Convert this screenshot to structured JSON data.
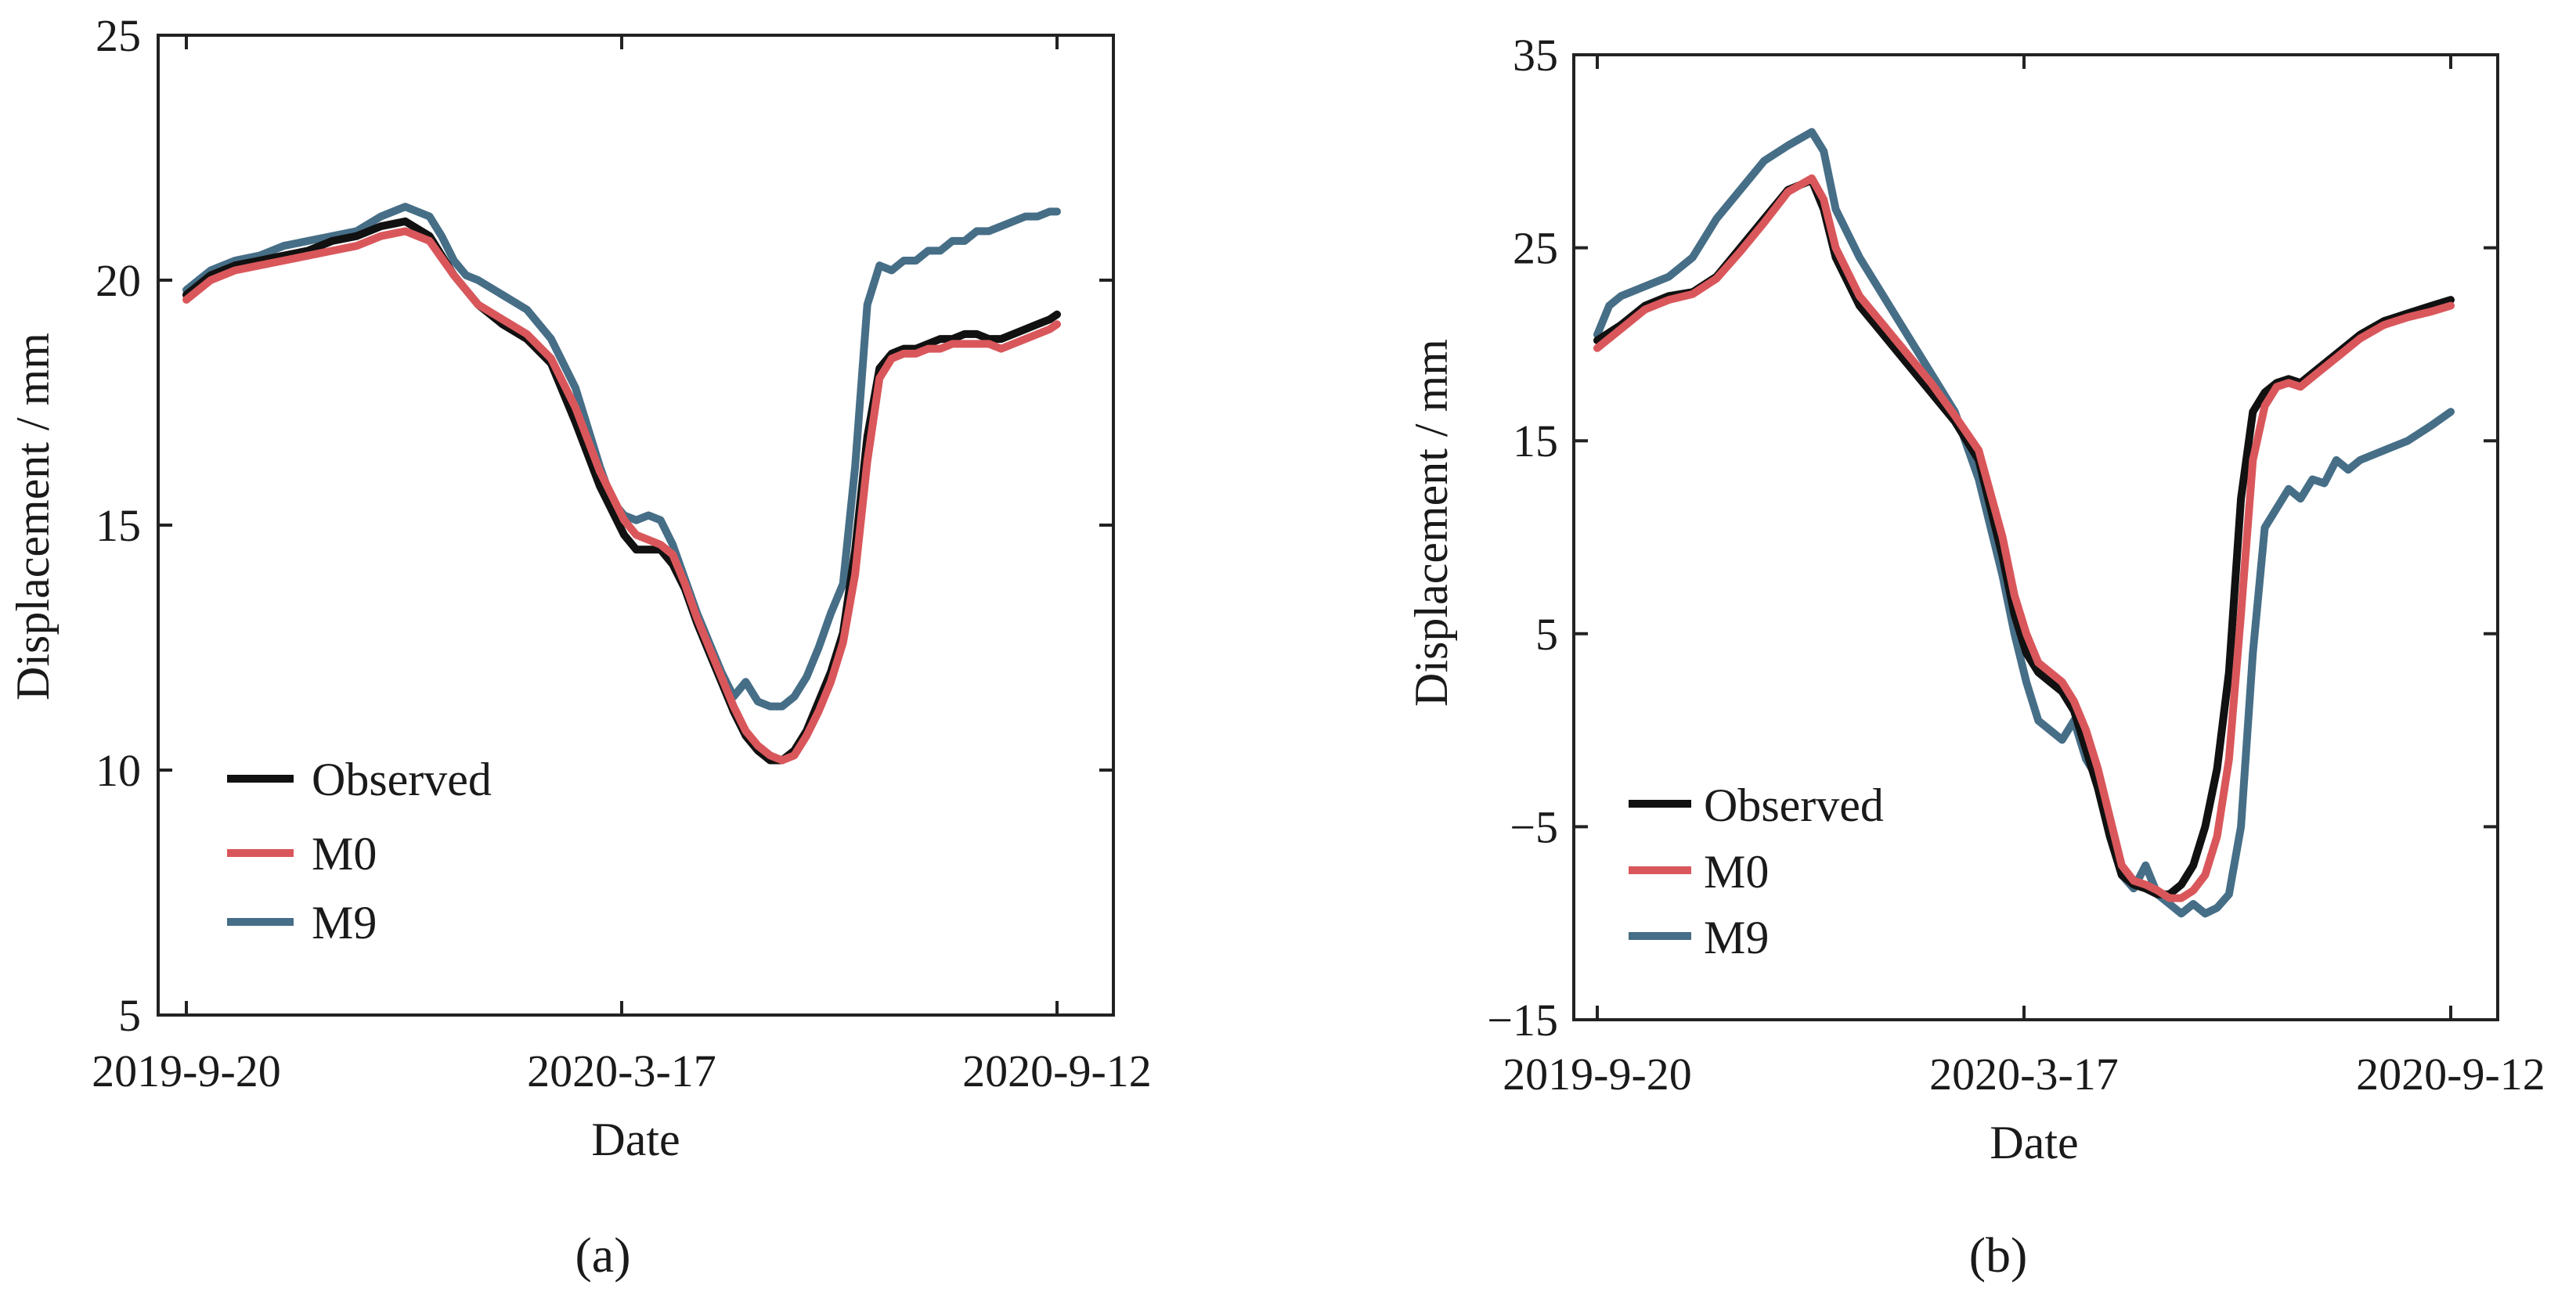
{
  "figure": {
    "caption_labels": [
      "(a)",
      "(b)"
    ]
  },
  "chart_data": [
    {
      "type": "line",
      "panel_label": "(a)",
      "xlabel": "Date",
      "ylabel": "Displacement / mm",
      "ylim": [
        5,
        25
      ],
      "yticks": [
        5,
        10,
        15,
        20,
        25
      ],
      "xlim": [
        0,
        358
      ],
      "xtick_values": [
        0,
        179,
        358
      ],
      "xtick_labels": [
        "2019-9-20",
        "2020-3-17",
        "2020-9-12"
      ],
      "legend_position": "lower-left",
      "series": [
        {
          "name": "Observed",
          "color": "#111111",
          "x": [
            0,
            10,
            20,
            30,
            40,
            50,
            60,
            70,
            80,
            90,
            100,
            110,
            115,
            120,
            130,
            140,
            150,
            160,
            170,
            180,
            185,
            190,
            195,
            200,
            205,
            210,
            215,
            220,
            225,
            230,
            235,
            240,
            245,
            250,
            255,
            260,
            265,
            270,
            275,
            280,
            285,
            290,
            295,
            300,
            305,
            310,
            315,
            320,
            325,
            330,
            335,
            340,
            345,
            350,
            355,
            358
          ],
          "values": [
            19.7,
            20.1,
            20.3,
            20.4,
            20.5,
            20.6,
            20.8,
            20.9,
            21.1,
            21.2,
            20.9,
            20.1,
            19.8,
            19.5,
            19.1,
            18.8,
            18.3,
            17.1,
            15.8,
            14.8,
            14.5,
            14.5,
            14.5,
            14.2,
            13.7,
            13.0,
            12.4,
            11.8,
            11.2,
            10.7,
            10.4,
            10.2,
            10.2,
            10.4,
            10.8,
            11.4,
            12.0,
            12.8,
            14.5,
            16.8,
            18.2,
            18.5,
            18.6,
            18.6,
            18.7,
            18.8,
            18.8,
            18.9,
            18.9,
            18.8,
            18.8,
            18.9,
            19.0,
            19.1,
            19.2,
            19.3
          ]
        },
        {
          "name": "M0",
          "color": "#d9575b",
          "x": [
            0,
            10,
            20,
            30,
            40,
            50,
            60,
            70,
            80,
            90,
            100,
            110,
            115,
            120,
            130,
            140,
            150,
            160,
            170,
            180,
            185,
            190,
            195,
            200,
            205,
            210,
            215,
            220,
            225,
            230,
            235,
            240,
            245,
            250,
            255,
            260,
            265,
            270,
            275,
            280,
            285,
            290,
            295,
            300,
            305,
            310,
            315,
            320,
            325,
            330,
            335,
            340,
            345,
            350,
            355,
            358
          ],
          "values": [
            19.6,
            20.0,
            20.2,
            20.3,
            20.4,
            20.5,
            20.6,
            20.7,
            20.9,
            21.0,
            20.8,
            20.1,
            19.8,
            19.5,
            19.2,
            18.9,
            18.4,
            17.4,
            16.1,
            15.1,
            14.8,
            14.7,
            14.6,
            14.4,
            13.8,
            13.1,
            12.5,
            11.9,
            11.3,
            10.8,
            10.5,
            10.3,
            10.2,
            10.3,
            10.7,
            11.2,
            11.8,
            12.6,
            14.0,
            16.3,
            18.0,
            18.4,
            18.5,
            18.5,
            18.6,
            18.6,
            18.7,
            18.7,
            18.7,
            18.7,
            18.6,
            18.7,
            18.8,
            18.9,
            19.0,
            19.1
          ]
        },
        {
          "name": "M9",
          "color": "#466e87",
          "x": [
            0,
            10,
            20,
            30,
            40,
            50,
            60,
            70,
            80,
            90,
            100,
            105,
            110,
            115,
            120,
            130,
            140,
            150,
            160,
            170,
            175,
            180,
            185,
            190,
            195,
            200,
            205,
            210,
            215,
            220,
            225,
            230,
            235,
            240,
            245,
            250,
            255,
            260,
            265,
            270,
            275,
            280,
            285,
            290,
            295,
            300,
            305,
            310,
            315,
            320,
            325,
            330,
            335,
            340,
            345,
            350,
            355,
            358
          ],
          "values": [
            19.8,
            20.2,
            20.4,
            20.5,
            20.7,
            20.8,
            20.9,
            21.0,
            21.3,
            21.5,
            21.3,
            20.9,
            20.4,
            20.1,
            20.0,
            19.7,
            19.4,
            18.8,
            17.8,
            16.2,
            15.5,
            15.2,
            15.1,
            15.2,
            15.1,
            14.6,
            13.9,
            13.2,
            12.6,
            12.0,
            11.5,
            11.8,
            11.4,
            11.3,
            11.3,
            11.5,
            11.9,
            12.5,
            13.2,
            13.8,
            16.2,
            19.5,
            20.3,
            20.2,
            20.4,
            20.4,
            20.6,
            20.6,
            20.8,
            20.8,
            21.0,
            21.0,
            21.1,
            21.2,
            21.3,
            21.3,
            21.4,
            21.4
          ]
        }
      ]
    },
    {
      "type": "line",
      "panel_label": "(b)",
      "xlabel": "Date",
      "ylabel": "Displacement / mm",
      "ylim": [
        -15,
        35
      ],
      "yticks": [
        -15,
        -5,
        5,
        15,
        25,
        35
      ],
      "ytick_labels": [
        "−15",
        "−5",
        "5",
        "15",
        "25",
        "35"
      ],
      "xlim": [
        0,
        358
      ],
      "xtick_values": [
        0,
        179,
        358
      ],
      "xtick_labels": [
        "2019-9-20",
        "2020-3-17",
        "2020-9-12"
      ],
      "legend_position": "lower-left",
      "series": [
        {
          "name": "Observed",
          "color": "#111111",
          "x": [
            0,
            10,
            20,
            30,
            40,
            50,
            60,
            70,
            80,
            90,
            95,
            100,
            110,
            120,
            130,
            140,
            150,
            160,
            170,
            175,
            180,
            185,
            190,
            195,
            200,
            205,
            210,
            215,
            220,
            225,
            230,
            235,
            240,
            245,
            250,
            255,
            260,
            265,
            270,
            275,
            280,
            285,
            290,
            295,
            300,
            310,
            320,
            330,
            340,
            350,
            358
          ],
          "values": [
            20.2,
            21.0,
            22.0,
            22.5,
            22.7,
            23.5,
            25.0,
            26.5,
            28.0,
            28.5,
            27.0,
            24.5,
            22.0,
            20.5,
            19.0,
            17.5,
            16.0,
            14.0,
            9.0,
            6.0,
            4.0,
            3.0,
            2.5,
            2.0,
            1.0,
            -1.0,
            -3.0,
            -5.5,
            -7.5,
            -8.0,
            -8.2,
            -8.5,
            -8.5,
            -8.0,
            -7.0,
            -5.0,
            -2.0,
            3.0,
            12.0,
            16.5,
            17.5,
            18.0,
            18.2,
            18.0,
            18.5,
            19.5,
            20.5,
            21.2,
            21.6,
            22.0,
            22.3
          ]
        },
        {
          "name": "M0",
          "color": "#d9575b",
          "x": [
            0,
            10,
            20,
            30,
            40,
            50,
            60,
            70,
            80,
            90,
            95,
            100,
            110,
            120,
            130,
            140,
            150,
            160,
            170,
            175,
            180,
            185,
            190,
            195,
            200,
            205,
            210,
            215,
            220,
            225,
            230,
            235,
            240,
            245,
            250,
            255,
            260,
            265,
            270,
            275,
            280,
            285,
            290,
            295,
            300,
            310,
            320,
            330,
            340,
            350,
            358
          ],
          "values": [
            19.8,
            20.8,
            21.8,
            22.3,
            22.6,
            23.4,
            24.8,
            26.3,
            27.9,
            28.6,
            27.5,
            25.0,
            22.5,
            21.0,
            19.5,
            18.0,
            16.3,
            14.5,
            10.0,
            7.0,
            5.0,
            3.5,
            3.0,
            2.5,
            1.5,
            0.0,
            -2.0,
            -4.5,
            -7.0,
            -7.8,
            -8.0,
            -8.3,
            -8.7,
            -8.7,
            -8.3,
            -7.5,
            -5.5,
            -1.5,
            6.0,
            14.0,
            16.8,
            17.8,
            18.0,
            17.8,
            18.3,
            19.3,
            20.3,
            21.0,
            21.4,
            21.7,
            22.0
          ]
        },
        {
          "name": "M9",
          "color": "#466e87",
          "x": [
            0,
            5,
            10,
            20,
            30,
            40,
            50,
            60,
            70,
            80,
            90,
            95,
            100,
            110,
            120,
            130,
            140,
            150,
            160,
            170,
            175,
            180,
            185,
            190,
            195,
            200,
            205,
            210,
            215,
            220,
            225,
            230,
            235,
            240,
            245,
            250,
            255,
            260,
            265,
            270,
            275,
            280,
            285,
            290,
            295,
            300,
            305,
            310,
            315,
            320,
            330,
            340,
            350,
            358
          ],
          "values": [
            20.5,
            22.0,
            22.5,
            23.0,
            23.5,
            24.5,
            26.5,
            28.0,
            29.5,
            30.3,
            31.0,
            30.0,
            27.0,
            24.5,
            22.5,
            20.5,
            18.5,
            16.5,
            13.0,
            8.0,
            5.0,
            2.5,
            0.5,
            0.0,
            -0.5,
            0.5,
            -1.5,
            -2.5,
            -5.0,
            -7.5,
            -8.2,
            -7.0,
            -8.5,
            -9.0,
            -9.5,
            -9.0,
            -9.5,
            -9.2,
            -8.5,
            -5.0,
            4.0,
            10.5,
            11.5,
            12.5,
            12.0,
            13.0,
            12.8,
            14.0,
            13.5,
            14.0,
            14.5,
            15.0,
            15.8,
            16.5
          ]
        }
      ]
    }
  ]
}
